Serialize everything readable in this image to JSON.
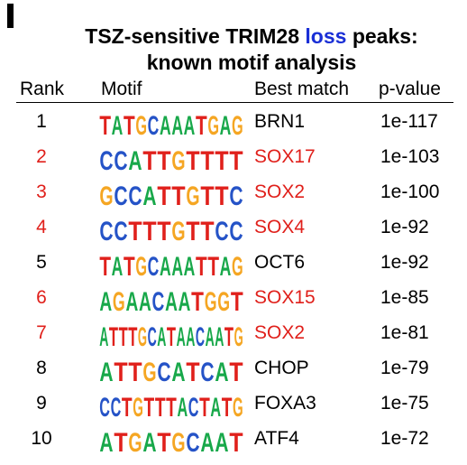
{
  "panel": {
    "label": "I"
  },
  "title": {
    "prefix": "TSZ-sensitive TRIM28 ",
    "highlight": "loss",
    "suffix": " peaks:",
    "line2": "known motif analysis"
  },
  "headers": {
    "rank": "Rank",
    "motif": "Motif",
    "match": "Best match",
    "pvalue": "p-value"
  },
  "colors": {
    "A": "#18a84a",
    "C": "#2553c7",
    "G": "#f5a623",
    "T": "#e0201b",
    "highlight_row": "#e0201b",
    "title_highlight": "#1a2fd6"
  },
  "rows": [
    {
      "rank": "1",
      "match": "BRN1",
      "pvalue": "1e-117",
      "highlight": false,
      "motif": "TATGCAAATGAG",
      "small": "A1G1T1C1"
    },
    {
      "rank": "2",
      "match": "SOX17",
      "pvalue": "1e-103",
      "highlight": true,
      "motif": "CCATTGTTTT",
      "small": "C1G1C1"
    },
    {
      "rank": "3",
      "match": "SOX2",
      "pvalue": "1e-100",
      "highlight": true,
      "motif": "GCCATTGTTC",
      "small": "A1G1"
    },
    {
      "rank": "4",
      "match": "SOX4",
      "pvalue": "1e-92",
      "highlight": true,
      "motif": "CCTTTGTTCC",
      "small": "G1T1"
    },
    {
      "rank": "5",
      "match": "OCT6",
      "pvalue": "1e-92",
      "highlight": false,
      "motif": "TATGCAAATTAG",
      "small": "A1G1T1"
    },
    {
      "rank": "6",
      "match": "SOX15",
      "pvalue": "1e-85",
      "highlight": true,
      "motif": "AGAACAATGGT",
      "small": "C1G1"
    },
    {
      "rank": "7",
      "match": "SOX2",
      "pvalue": "1e-81",
      "highlight": true,
      "motif": "ATTTGCATAACAATG",
      "small": "A1G1T1C1"
    },
    {
      "rank": "8",
      "match": "CHOP",
      "pvalue": "1e-79",
      "highlight": false,
      "motif": "ATTGCATCAT",
      "small": "G1A1"
    },
    {
      "rank": "9",
      "match": "FOXA3",
      "pvalue": "1e-75",
      "highlight": false,
      "motif": "CCTGTTTACTATG",
      "small": "G1A1C1"
    },
    {
      "rank": "10",
      "match": "ATF4",
      "pvalue": "1e-72",
      "highlight": false,
      "motif": "ATGATGCAAT",
      "small": "C1G1"
    }
  ]
}
